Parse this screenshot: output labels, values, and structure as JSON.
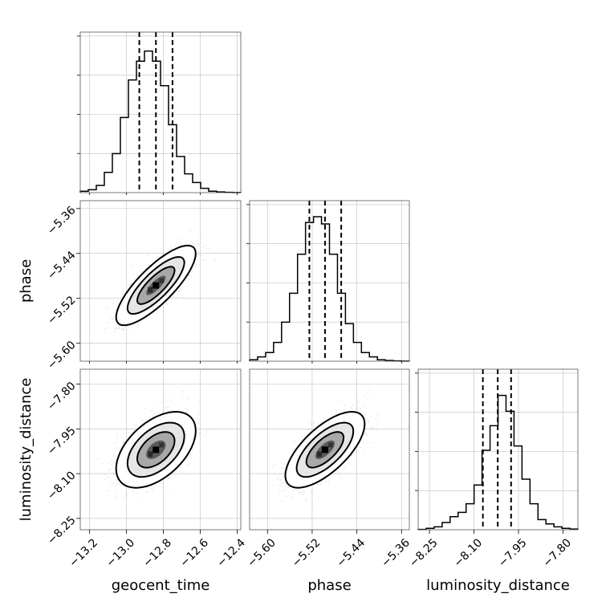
{
  "chart_data": {
    "type": "corner",
    "parameters": [
      "geocent_time",
      "phase",
      "luminosity_distance"
    ],
    "axes": {
      "geocent_time": {
        "label": "geocent_time",
        "range": [
          -13.25,
          -12.38
        ],
        "ticks": [
          -13.2,
          -13.0,
          -12.8,
          -12.6,
          -12.4
        ],
        "tick_labels": [
          "−13.2",
          "−13.0",
          "−12.8",
          "−12.6",
          "−12.4"
        ],
        "quantiles": [
          -12.93,
          -12.84,
          -12.75
        ]
      },
      "phase": {
        "label": "phase",
        "range": [
          -5.632,
          -5.346
        ],
        "ticks": [
          -5.6,
          -5.52,
          -5.44,
          -5.36
        ],
        "tick_labels": [
          "−5.60",
          "−5.52",
          "−5.44",
          "−5.36"
        ],
        "quantiles": [
          -5.525,
          -5.497,
          -5.468
        ]
      },
      "luminosity_distance": {
        "label": "luminosity_distance",
        "range": [
          -8.288,
          -7.75
        ],
        "ticks": [
          -8.25,
          -8.1,
          -7.95,
          -7.8
        ],
        "tick_labels": [
          "−8.25",
          "−8.10",
          "−7.95",
          "−7.80"
        ],
        "quantiles": [
          -8.07,
          -8.02,
          -7.975
        ]
      }
    },
    "histograms": {
      "geocent_time": {
        "counts": [
          0.01,
          0.02,
          0.05,
          0.14,
          0.27,
          0.52,
          0.78,
          0.91,
          0.98,
          0.91,
          0.74,
          0.47,
          0.25,
          0.13,
          0.07,
          0.03,
          0.01,
          0.005,
          0.002,
          0.001
        ]
      },
      "phase": {
        "counts": [
          0.01,
          0.03,
          0.06,
          0.13,
          0.27,
          0.47,
          0.74,
          0.96,
          1.0,
          0.95,
          0.74,
          0.47,
          0.26,
          0.13,
          0.06,
          0.03,
          0.01,
          0.005,
          0.002,
          0.001
        ]
      },
      "luminosity_distance": {
        "counts": [
          0.002,
          0.01,
          0.02,
          0.05,
          0.09,
          0.12,
          0.18,
          0.31,
          0.55,
          0.72,
          0.93,
          0.82,
          0.58,
          0.35,
          0.18,
          0.07,
          0.04,
          0.02,
          0.01,
          0.005
        ]
      }
    },
    "joint": [
      {
        "x": "geocent_time",
        "y": "phase",
        "mean": [
          -12.84,
          -5.497
        ],
        "std": [
          0.088,
          0.029
        ],
        "correlation": 0.8
      },
      {
        "x": "geocent_time",
        "y": "luminosity_distance",
        "mean": [
          -12.84,
          -8.02
        ],
        "std": [
          0.088,
          0.052
        ],
        "correlation": 0.5
      },
      {
        "x": "phase",
        "y": "luminosity_distance",
        "mean": [
          -5.497,
          -8.02
        ],
        "std": [
          0.029,
          0.052
        ],
        "correlation": 0.68
      }
    ],
    "grid": true
  }
}
